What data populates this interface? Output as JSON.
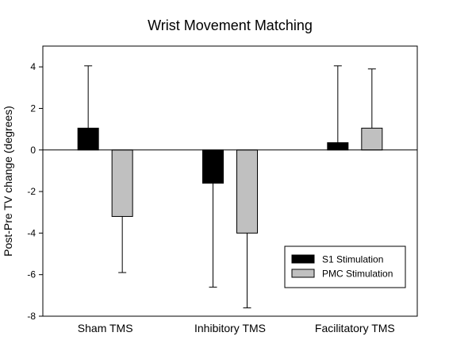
{
  "chart_data": {
    "type": "bar",
    "title": "Wrist Movement Matching",
    "xlabel": "",
    "ylabel": "Post-Pre TV change (degrees)",
    "ylim": [
      -8,
      5
    ],
    "yticks": [
      4,
      2,
      0,
      -2,
      -4,
      -6,
      -8
    ],
    "categories": [
      "Sham TMS",
      "Inhibitory TMS",
      "Facilitatory TMS"
    ],
    "series": [
      {
        "name": "S1 Stimulation",
        "color": "#000000",
        "values": [
          1.05,
          -1.6,
          0.35
        ],
        "errors": [
          3.0,
          5.0,
          3.7
        ]
      },
      {
        "name": "PMC Stimulation",
        "color": "#c0c0c0",
        "values": [
          -3.2,
          -4.0,
          1.05
        ],
        "errors": [
          2.7,
          3.6,
          2.85
        ]
      }
    ],
    "error_direction": "away-from-zero",
    "grid": false,
    "legend_position": "bottom-right"
  }
}
